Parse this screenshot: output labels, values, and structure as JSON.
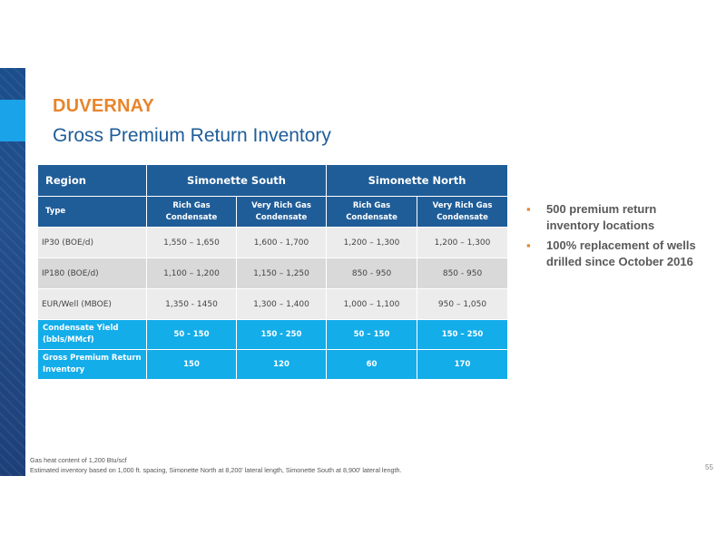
{
  "title": "DUVERNAY",
  "subtitle": "Gross Premium Return Inventory",
  "table": {
    "header": {
      "region_label": "Region",
      "groups": [
        "Simonette South",
        "Simonette North"
      ]
    },
    "type_row": {
      "label": "Type",
      "cells": [
        "Rich Gas\nCondensate",
        "Very Rich Gas\nCondensate",
        "Rich Gas\nCondensate",
        "Very Rich Gas\nCondensate"
      ]
    },
    "rows": [
      {
        "label": "IP30 (BOE/d)",
        "values": [
          "1,550 – 1,650",
          "1,600 - 1,700",
          "1,200 – 1,300",
          "1,200 – 1,300"
        ]
      },
      {
        "label": "IP180 (BOE/d)",
        "values": [
          "1,100 – 1,200",
          "1,150 – 1,250",
          "850 - 950",
          "850 - 950"
        ]
      },
      {
        "label": "EUR/Well (MBOE)",
        "values": [
          "1,350 - 1450",
          "1,300 – 1,400",
          "1,000 – 1,100",
          "950 – 1,050"
        ]
      },
      {
        "label": "Condensate Yield\n(bbls/MMcf)",
        "values": [
          "50 - 150",
          "150 - 250",
          "50 – 150",
          "150 – 250"
        ]
      },
      {
        "label": "Gross Premium Return\nInventory",
        "values": [
          "150",
          "120",
          "60",
          "170"
        ]
      }
    ]
  },
  "bullets": [
    "500 premium return inventory locations",
    "100% replacement of wells drilled since October 2016"
  ],
  "footnotes": [
    "Gas heat content of 1,200 Btu/scf",
    "Estimated inventory based on 1,000 ft. spacing, Simonette North at 8,200' lateral length, Simonette South at 8,900' lateral length."
  ],
  "page_number": "55",
  "colors": {
    "title_orange": "#e8852b",
    "header_navy": "#1f5d98",
    "highlight_cyan": "#13adea",
    "accent_bar": "#1b4e8c"
  }
}
